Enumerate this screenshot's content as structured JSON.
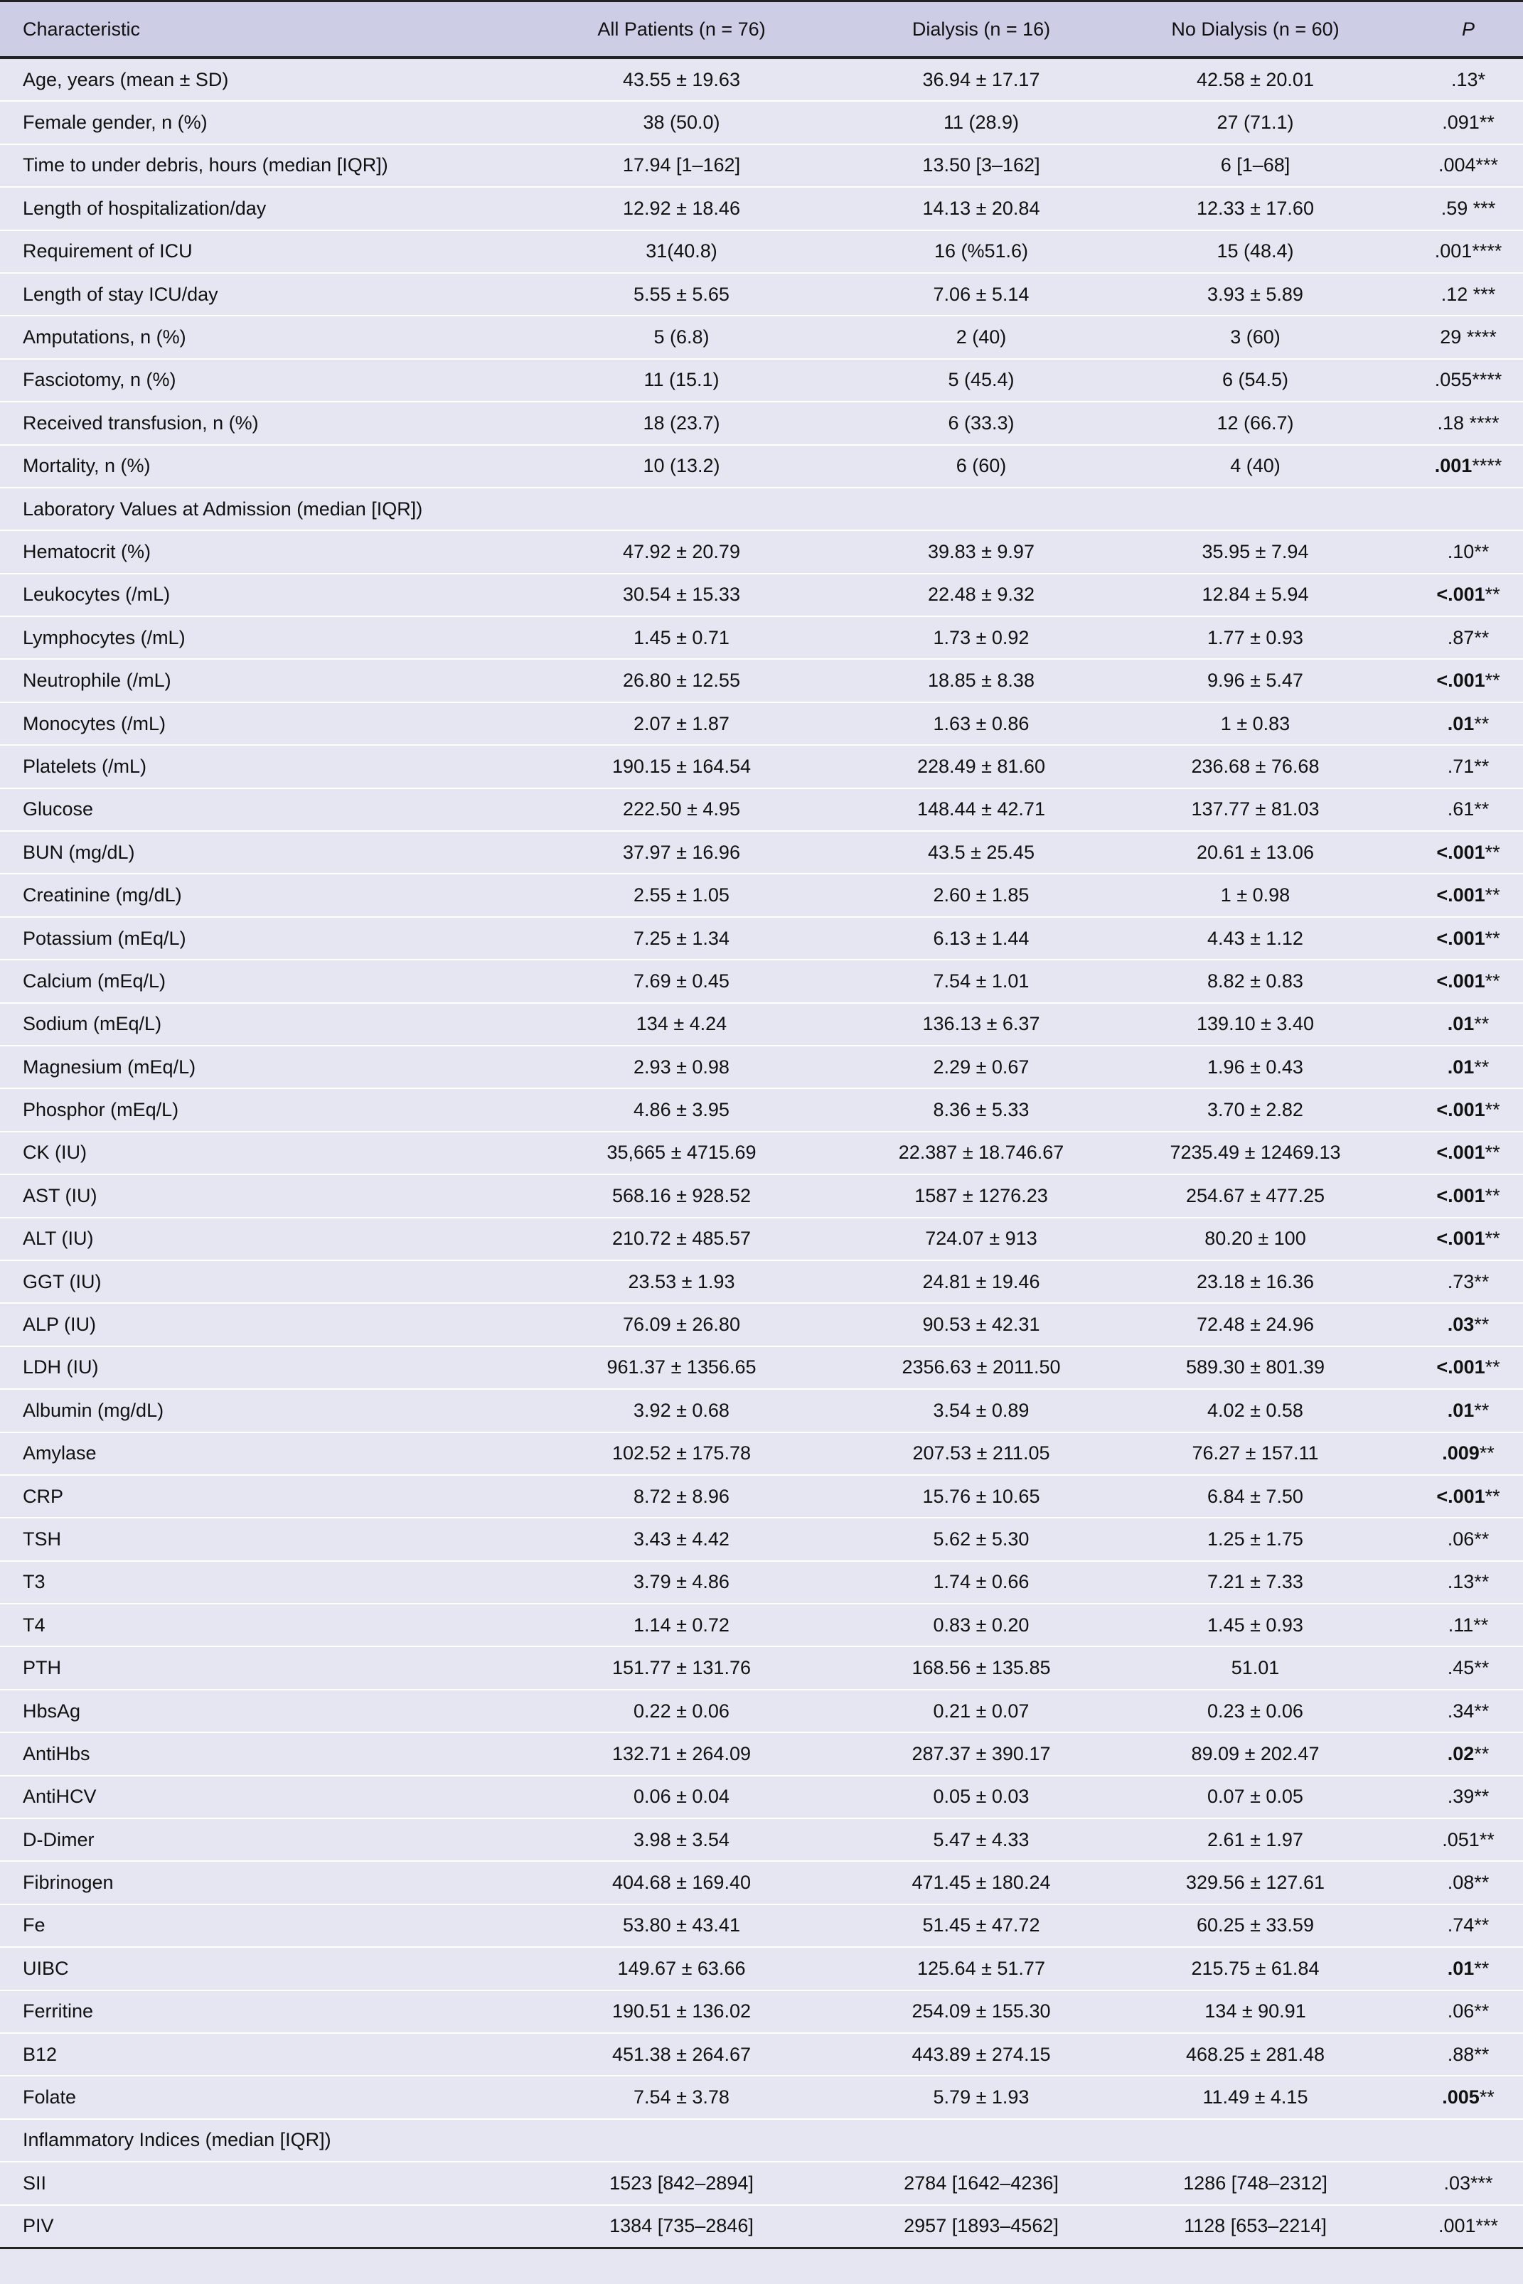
{
  "table": {
    "headers": [
      "Characteristic",
      "All Patients (n = 76)",
      "Dialysis (n = 16)",
      "No Dialysis (n = 60)",
      "P"
    ],
    "rows": [
      {
        "c": "Age, years (mean ± SD)",
        "all": "43.55 ± 19.63",
        "d": "36.94 ± 17.17",
        "nd": "42.58 ± 20.01",
        "p": ".13",
        "s": "*",
        "b": false
      },
      {
        "c": "Female gender, n (%)",
        "all": "38 (50.0)",
        "d": "11 (28.9)",
        "nd": "27 (71.1)",
        "p": ".091",
        "s": "**",
        "b": false
      },
      {
        "c": "Time to under debris, hours (median [IQR])",
        "all": "17.94 [1–162]",
        "d": "13.50 [3–162]",
        "nd": "6 [1–68]",
        "p": ".004",
        "s": "***",
        "b": false
      },
      {
        "c": "Length of hospitalization/day",
        "all": "12.92 ± 18.46",
        "d": "14.13 ± 20.84",
        "nd": "12.33 ± 17.60",
        "p": ".59",
        "s": " ***",
        "b": false
      },
      {
        "c": "Requirement of ICU",
        "all": "31(40.8)",
        "d": "16 (%51.6)",
        "nd": "15 (48.4)",
        "p": ".001",
        "s": "****",
        "b": false
      },
      {
        "c": "Length of stay ICU/day",
        "all": "5.55 ± 5.65",
        "d": "7.06 ± 5.14",
        "nd": "3.93 ± 5.89",
        "p": ".12",
        "s": " ***",
        "b": false
      },
      {
        "c": "Amputations, n (%)",
        "all": "5 (6.8)",
        "d": "2 (40)",
        "nd": "3 (60)",
        "p": "29",
        "s": " ****",
        "b": false
      },
      {
        "c": "Fasciotomy, n (%)",
        "all": "11 (15.1)",
        "d": "5 (45.4)",
        "nd": "6 (54.5)",
        "p": ".055",
        "s": "****",
        "b": false
      },
      {
        "c": "Received transfusion, n (%)",
        "all": "18 (23.7)",
        "d": "6 (33.3)",
        "nd": "12 (66.7)",
        "p": ".18",
        "s": " ****",
        "b": false
      },
      {
        "c": "Mortality, n (%)",
        "all": "10 (13.2)",
        "d": "6 (60)",
        "nd": "4 (40)",
        "p": ".001",
        "s": "****",
        "b": true
      },
      {
        "c": "Laboratory Values at Admission (median [IQR])",
        "all": "",
        "d": "",
        "nd": "",
        "p": "",
        "s": "",
        "b": false
      },
      {
        "c": "Hematocrit (%)",
        "all": "47.92 ± 20.79",
        "d": "39.83 ± 9.97",
        "nd": "35.95 ± 7.94",
        "p": ".10",
        "s": "**",
        "b": false
      },
      {
        "c": "Leukocytes (/mL)",
        "all": "30.54 ± 15.33",
        "d": "22.48 ± 9.32",
        "nd": "12.84 ± 5.94",
        "p": "<.001",
        "s": "**",
        "b": true
      },
      {
        "c": "Lymphocytes (/mL)",
        "all": "1.45 ± 0.71",
        "d": "1.73 ± 0.92",
        "nd": "1.77 ± 0.93",
        "p": ".87",
        "s": "**",
        "b": false
      },
      {
        "c": "Neutrophile (/mL)",
        "all": "26.80 ± 12.55",
        "d": "18.85 ± 8.38",
        "nd": "9.96 ± 5.47",
        "p": "<.001",
        "s": "**",
        "b": true
      },
      {
        "c": "Monocytes (/mL)",
        "all": "2.07 ± 1.87",
        "d": "1.63 ± 0.86",
        "nd": "1 ± 0.83",
        "p": ".01",
        "s": "**",
        "b": true
      },
      {
        "c": "Platelets (/mL)",
        "all": "190.15 ± 164.54",
        "d": "228.49 ± 81.60",
        "nd": "236.68 ± 76.68",
        "p": ".71",
        "s": "**",
        "b": false
      },
      {
        "c": "Glucose",
        "all": "222.50 ± 4.95",
        "d": "148.44 ± 42.71",
        "nd": "137.77 ± 81.03",
        "p": ".61",
        "s": "**",
        "b": false
      },
      {
        "c": "BUN (mg/dL)",
        "all": "37.97 ± 16.96",
        "d": "43.5 ± 25.45",
        "nd": "20.61 ± 13.06",
        "p": "<.001",
        "s": "**",
        "b": true
      },
      {
        "c": "Creatinine (mg/dL)",
        "all": "2.55 ± 1.05",
        "d": "2.60 ± 1.85",
        "nd": "1 ± 0.98",
        "p": "<.001",
        "s": "**",
        "b": true
      },
      {
        "c": "Potassium (mEq/L)",
        "all": "7.25 ± 1.34",
        "d": "6.13 ± 1.44",
        "nd": "4.43 ± 1.12",
        "p": "<.001",
        "s": "**",
        "b": true
      },
      {
        "c": "Calcium (mEq/L)",
        "all": "7.69 ± 0.45",
        "d": "7.54 ± 1.01",
        "nd": "8.82 ± 0.83",
        "p": "<.001",
        "s": "**",
        "b": true
      },
      {
        "c": "Sodium (mEq/L)",
        "all": "134 ± 4.24",
        "d": "136.13 ± 6.37",
        "nd": "139.10 ± 3.40",
        "p": ".01",
        "s": "**",
        "b": true
      },
      {
        "c": "Magnesium (mEq/L)",
        "all": "2.93 ± 0.98",
        "d": "2.29 ± 0.67",
        "nd": "1.96 ± 0.43",
        "p": ".01",
        "s": "**",
        "b": true
      },
      {
        "c": "Phosphor (mEq/L)",
        "all": "4.86 ± 3.95",
        "d": "8.36 ± 5.33",
        "nd": "3.70 ± 2.82",
        "p": "<.001",
        "s": "**",
        "b": true
      },
      {
        "c": "CK (IU)",
        "all": "35,665 ± 4715.69",
        "d": "22.387 ± 18.746.67",
        "nd": "7235.49 ± 12469.13",
        "p": "<.001",
        "s": "**",
        "b": true
      },
      {
        "c": "AST (IU)",
        "all": "568.16 ± 928.52",
        "d": "1587 ± 1276.23",
        "nd": "254.67 ± 477.25",
        "p": "<.001",
        "s": "**",
        "b": true
      },
      {
        "c": "ALT (IU)",
        "all": "210.72 ± 485.57",
        "d": "724.07 ± 913",
        "nd": "80.20 ± 100",
        "p": "<.001",
        "s": "**",
        "b": true
      },
      {
        "c": "GGT (IU)",
        "all": "23.53 ± 1.93",
        "d": "24.81 ± 19.46",
        "nd": "23.18 ± 16.36",
        "p": ".73",
        "s": "**",
        "b": false
      },
      {
        "c": "ALP (IU)",
        "all": "76.09 ± 26.80",
        "d": "90.53 ± 42.31",
        "nd": "72.48 ± 24.96",
        "p": ".03",
        "s": "**",
        "b": true
      },
      {
        "c": "LDH (IU)",
        "all": "961.37 ± 1356.65",
        "d": "2356.63 ± 2011.50",
        "nd": "589.30 ± 801.39",
        "p": "<.001",
        "s": "**",
        "b": true
      },
      {
        "c": "Albumin (mg/dL)",
        "all": "3.92 ± 0.68",
        "d": "3.54 ± 0.89",
        "nd": "4.02 ± 0.58",
        "p": ".01",
        "s": "**",
        "b": true
      },
      {
        "c": "Amylase",
        "all": "102.52 ± 175.78",
        "d": "207.53 ± 211.05",
        "nd": "76.27 ± 157.11",
        "p": ".009",
        "s": "**",
        "b": true
      },
      {
        "c": "CRP",
        "all": "8.72 ± 8.96",
        "d": "15.76 ± 10.65",
        "nd": "6.84 ± 7.50",
        "p": "<.001",
        "s": "**",
        "b": true
      },
      {
        "c": "TSH",
        "all": "3.43 ± 4.42",
        "d": "5.62 ± 5.30",
        "nd": "1.25 ± 1.75",
        "p": ".06",
        "s": "**",
        "b": false
      },
      {
        "c": "T3",
        "all": "3.79 ± 4.86",
        "d": "1.74 ± 0.66",
        "nd": "7.21 ± 7.33",
        "p": ".13",
        "s": "**",
        "b": false
      },
      {
        "c": "T4",
        "all": "1.14 ± 0.72",
        "d": "0.83 ± 0.20",
        "nd": "1.45 ± 0.93",
        "p": ".11",
        "s": "**",
        "b": false
      },
      {
        "c": "PTH",
        "all": "151.77 ± 131.76",
        "d": "168.56 ± 135.85",
        "nd": "51.01",
        "p": ".45",
        "s": "**",
        "b": false
      },
      {
        "c": "HbsAg",
        "all": "0.22 ± 0.06",
        "d": "0.21 ± 0.07",
        "nd": "0.23 ± 0.06",
        "p": ".34",
        "s": "**",
        "b": false
      },
      {
        "c": "AntiHbs",
        "all": "132.71 ± 264.09",
        "d": "287.37 ± 390.17",
        "nd": "89.09 ± 202.47",
        "p": ".02",
        "s": "**",
        "b": true
      },
      {
        "c": "AntiHCV",
        "all": "0.06 ± 0.04",
        "d": "0.05 ± 0.03",
        "nd": "0.07 ± 0.05",
        "p": ".39",
        "s": "**",
        "b": false
      },
      {
        "c": "D-Dimer",
        "all": "3.98 ± 3.54",
        "d": "5.47 ± 4.33",
        "nd": "2.61 ± 1.97",
        "p": ".051",
        "s": "**",
        "b": false
      },
      {
        "c": "Fibrinogen",
        "all": "404.68 ± 169.40",
        "d": "471.45 ± 180.24",
        "nd": "329.56 ± 127.61",
        "p": ".08",
        "s": "**",
        "b": false
      },
      {
        "c": "Fe",
        "all": "53.80 ± 43.41",
        "d": "51.45 ± 47.72",
        "nd": "60.25 ± 33.59",
        "p": ".74",
        "s": "**",
        "b": false
      },
      {
        "c": "UIBC",
        "all": "149.67 ± 63.66",
        "d": "125.64 ± 51.77",
        "nd": "215.75 ± 61.84",
        "p": ".01",
        "s": "**",
        "b": true
      },
      {
        "c": "Ferritine",
        "all": "190.51 ± 136.02",
        "d": "254.09 ± 155.30",
        "nd": "134 ± 90.91",
        "p": ".06",
        "s": "**",
        "b": false
      },
      {
        "c": "B12",
        "all": "451.38 ± 264.67",
        "d": "443.89 ± 274.15",
        "nd": "468.25 ± 281.48",
        "p": ".88",
        "s": "**",
        "b": false
      },
      {
        "c": "Folate",
        "all": "7.54 ± 3.78",
        "d": "5.79 ± 1.93",
        "nd": "11.49 ± 4.15",
        "p": ".005",
        "s": "**",
        "b": true
      },
      {
        "c": "Inflammatory Indices (median [IQR])",
        "all": "",
        "d": "",
        "nd": "",
        "p": "",
        "s": "",
        "b": false
      },
      {
        "c": "SII",
        "all": "1523 [842–2894]",
        "d": "2784 [1642–4236]",
        "nd": "1286 [748–2312]",
        "p": ".03",
        "s": "***",
        "b": false
      },
      {
        "c": "PIV",
        "all": "1384 [735–2846]",
        "d": "2957 [1893–4562]",
        "nd": "1128 [653–2214]",
        "p": ".001",
        "s": "***",
        "b": false
      }
    ]
  }
}
